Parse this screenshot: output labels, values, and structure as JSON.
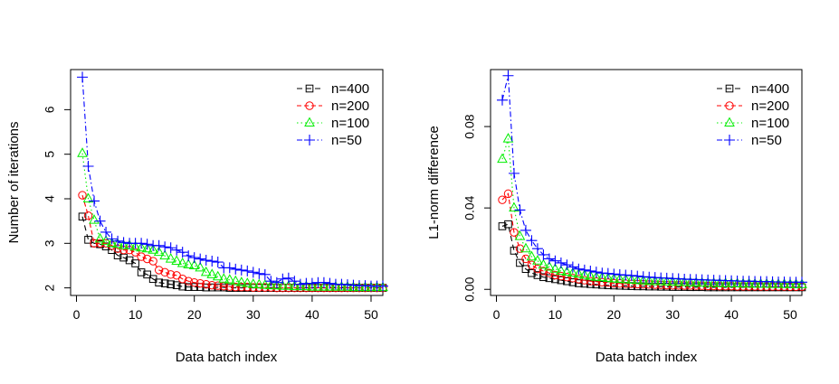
{
  "chart_data": [
    {
      "type": "line",
      "title": "",
      "xlabel": "Data batch index",
      "ylabel": "Number of iterations",
      "xlim": [
        -1,
        52
      ],
      "ylim": [
        1.83,
        6.9
      ],
      "xticks": [
        0,
        10,
        20,
        30,
        40,
        50
      ],
      "xtick_labels": [
        "0",
        "10",
        "20",
        "30",
        "40",
        "50"
      ],
      "yticks": [
        2,
        3,
        4,
        5,
        6
      ],
      "ytick_labels": [
        "2",
        "3",
        "4",
        "5",
        "6"
      ],
      "legend_position": "top-right",
      "series": [
        {
          "name": "n=400",
          "color": "#000000",
          "marker": "square",
          "dash": "6,4",
          "values": [
            3.6,
            3.08,
            3.0,
            2.98,
            2.93,
            2.85,
            2.73,
            2.68,
            2.62,
            2.55,
            2.35,
            2.3,
            2.2,
            2.12,
            2.1,
            2.08,
            2.06,
            2.03,
            2.02,
            2.02,
            2.02,
            2.01,
            2.01,
            2.01,
            2.01,
            2.0,
            2.0,
            2.0,
            2.0,
            2.0,
            2.0,
            2.0,
            2.0,
            2.0,
            2.0,
            2.0,
            2.0,
            2.0,
            2.0,
            2.0,
            2.0,
            2.0,
            2.0,
            2.0,
            2.0,
            2.0,
            2.0,
            2.0,
            2.0,
            2.0,
            2.0,
            2.0
          ]
        },
        {
          "name": "n=200",
          "color": "#ff0000",
          "marker": "circle",
          "dash": "5,3",
          "values": [
            4.08,
            3.62,
            3.0,
            3.0,
            3.0,
            2.95,
            2.88,
            2.85,
            2.85,
            2.8,
            2.7,
            2.65,
            2.6,
            2.4,
            2.35,
            2.3,
            2.28,
            2.2,
            2.15,
            2.12,
            2.1,
            2.08,
            2.06,
            2.05,
            2.04,
            2.03,
            2.02,
            2.02,
            2.02,
            2.01,
            2.01,
            2.01,
            2.01,
            2.0,
            2.0,
            2.0,
            2.0,
            2.0,
            2.0,
            2.0,
            2.0,
            2.0,
            2.0,
            2.0,
            2.0,
            2.0,
            2.0,
            2.0,
            2.0,
            2.0,
            2.0,
            2.0
          ]
        },
        {
          "name": "n=100",
          "color": "#00ee00",
          "marker": "triangle",
          "dash": "1.5,3",
          "values": [
            5.02,
            4.0,
            3.52,
            3.1,
            3.05,
            3.0,
            2.98,
            2.95,
            2.95,
            2.92,
            2.9,
            2.88,
            2.85,
            2.8,
            2.72,
            2.65,
            2.6,
            2.55,
            2.52,
            2.5,
            2.45,
            2.35,
            2.3,
            2.25,
            2.2,
            2.18,
            2.15,
            2.12,
            2.1,
            2.08,
            2.07,
            2.06,
            2.05,
            2.05,
            2.04,
            2.04,
            2.03,
            2.03,
            2.03,
            2.02,
            2.02,
            2.02,
            2.02,
            2.02,
            2.02,
            2.02,
            2.01,
            2.01,
            2.01,
            2.01,
            2.01,
            2.01
          ]
        },
        {
          "name": "n=50",
          "color": "#0000ff",
          "marker": "plus",
          "dash": "6,3,1.5,3",
          "values": [
            6.73,
            4.73,
            3.95,
            3.5,
            3.25,
            3.1,
            3.05,
            3.02,
            3.0,
            3.0,
            3.0,
            2.98,
            2.95,
            2.95,
            2.92,
            2.9,
            2.85,
            2.8,
            2.72,
            2.68,
            2.65,
            2.62,
            2.6,
            2.58,
            2.45,
            2.45,
            2.42,
            2.4,
            2.38,
            2.35,
            2.32,
            2.3,
            2.15,
            2.12,
            2.2,
            2.22,
            2.15,
            2.08,
            2.1,
            2.1,
            2.12,
            2.12,
            2.1,
            2.08,
            2.08,
            2.07,
            2.06,
            2.05,
            2.05,
            2.04,
            2.04,
            2.04
          ]
        }
      ]
    },
    {
      "type": "line",
      "title": "",
      "xlabel": "Data batch index",
      "ylabel": "L1-norm difference",
      "xlim": [
        -1,
        52
      ],
      "ylim": [
        -0.003,
        0.108
      ],
      "xticks": [
        0,
        10,
        20,
        30,
        40,
        50
      ],
      "xtick_labels": [
        "0",
        "10",
        "20",
        "30",
        "40",
        "50"
      ],
      "yticks": [
        0,
        0.04,
        0.08
      ],
      "ytick_labels": [
        "0.00",
        "0.04",
        "0.08"
      ],
      "legend_position": "top-right",
      "series": [
        {
          "name": "n=400",
          "color": "#000000",
          "marker": "square",
          "dash": "6,4",
          "values": [
            0.031,
            0.032,
            0.019,
            0.013,
            0.01,
            0.008,
            0.007,
            0.006,
            0.0055,
            0.005,
            0.0045,
            0.004,
            0.0035,
            0.003,
            0.0028,
            0.0026,
            0.0024,
            0.0022,
            0.002,
            0.0019,
            0.0018,
            0.0017,
            0.0016,
            0.0015,
            0.0015,
            0.0014,
            0.0014,
            0.0013,
            0.0013,
            0.0012,
            0.0012,
            0.0012,
            0.0011,
            0.0011,
            0.0011,
            0.001,
            0.001,
            0.001,
            0.001,
            0.001,
            0.001,
            0.001,
            0.001,
            0.001,
            0.001,
            0.001,
            0.001,
            0.001,
            0.001,
            0.001,
            0.001,
            0.001
          ]
        },
        {
          "name": "n=200",
          "color": "#ff0000",
          "marker": "circle",
          "dash": "5,3",
          "values": [
            0.044,
            0.047,
            0.028,
            0.02,
            0.015,
            0.012,
            0.01,
            0.009,
            0.008,
            0.007,
            0.0065,
            0.006,
            0.0055,
            0.005,
            0.0045,
            0.004,
            0.0038,
            0.0035,
            0.0033,
            0.003,
            0.0029,
            0.0028,
            0.0027,
            0.0026,
            0.0025,
            0.0024,
            0.0023,
            0.0022,
            0.0021,
            0.002,
            0.002,
            0.0019,
            0.0019,
            0.0018,
            0.0018,
            0.0017,
            0.0017,
            0.0016,
            0.0016,
            0.0016,
            0.0015,
            0.0015,
            0.0015,
            0.0015,
            0.0014,
            0.0014,
            0.0014,
            0.0014,
            0.0014,
            0.0013,
            0.0013,
            0.0013
          ]
        },
        {
          "name": "n=100",
          "color": "#00ee00",
          "marker": "triangle",
          "dash": "1.5,3",
          "values": [
            0.064,
            0.074,
            0.04,
            0.026,
            0.02,
            0.016,
            0.014,
            0.012,
            0.011,
            0.01,
            0.009,
            0.0085,
            0.008,
            0.0075,
            0.007,
            0.0065,
            0.006,
            0.0058,
            0.0055,
            0.0052,
            0.005,
            0.0048,
            0.0046,
            0.0044,
            0.0042,
            0.004,
            0.0039,
            0.0038,
            0.0037,
            0.0036,
            0.0035,
            0.0034,
            0.0033,
            0.0032,
            0.0031,
            0.003,
            0.003,
            0.0029,
            0.0029,
            0.0028,
            0.0028,
            0.0027,
            0.0027,
            0.0026,
            0.0026,
            0.0026,
            0.0025,
            0.0025,
            0.0025,
            0.0024,
            0.0024,
            0.0024
          ]
        },
        {
          "name": "n=50",
          "color": "#0000ff",
          "marker": "plus",
          "dash": "6,3,1.5,3",
          "values": [
            0.093,
            0.105,
            0.057,
            0.039,
            0.029,
            0.024,
            0.02,
            0.017,
            0.015,
            0.014,
            0.013,
            0.012,
            0.011,
            0.01,
            0.0095,
            0.009,
            0.0085,
            0.008,
            0.0078,
            0.0075,
            0.0072,
            0.007,
            0.0068,
            0.0065,
            0.0062,
            0.006,
            0.0058,
            0.0056,
            0.0055,
            0.0053,
            0.0052,
            0.005,
            0.0049,
            0.0048,
            0.0047,
            0.0046,
            0.0045,
            0.0044,
            0.0043,
            0.0042,
            0.0041,
            0.004,
            0.004,
            0.0039,
            0.0038,
            0.0038,
            0.0037,
            0.0036,
            0.0036,
            0.0035,
            0.0035,
            0.0035
          ]
        }
      ]
    }
  ]
}
